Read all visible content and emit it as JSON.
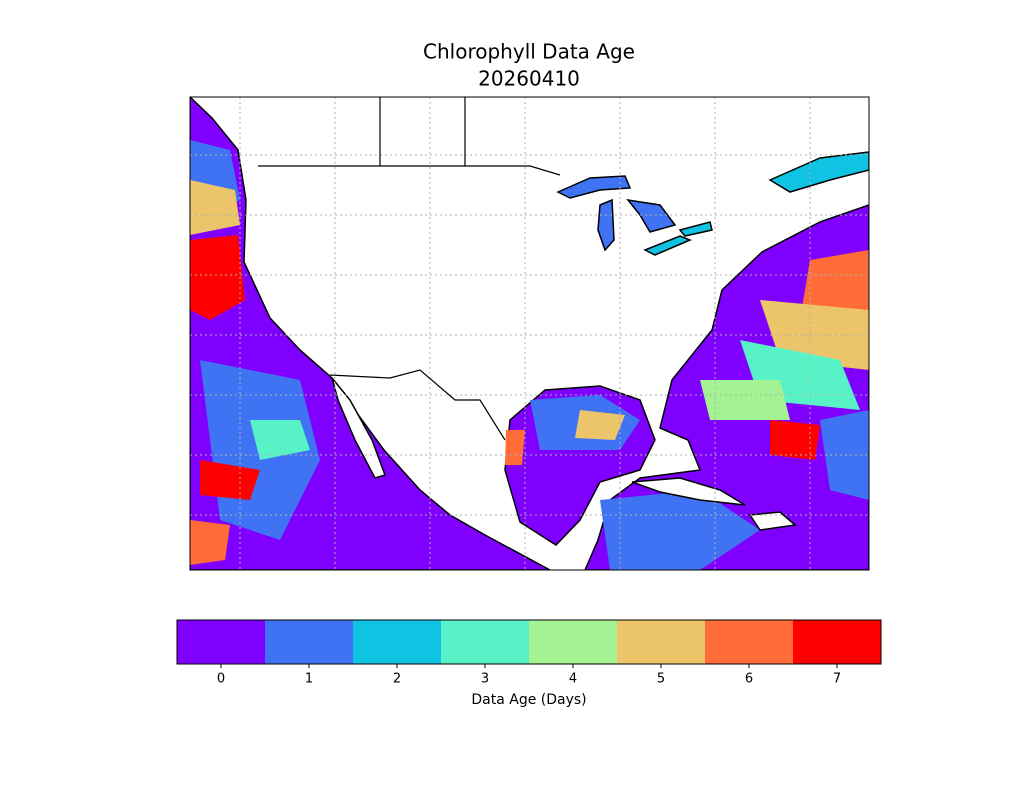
{
  "title": "Chlorophyll Data Age",
  "subtitle": "20260410",
  "colorbar": {
    "label": "Data Age (Days)",
    "ticks": [
      0,
      1,
      2,
      3,
      4,
      5,
      6,
      7
    ],
    "colors": [
      "#7f00ff",
      "#3f73f4",
      "#11c3e3",
      "#57f3c6",
      "#a4f392",
      "#ecc56b",
      "#ff6c37",
      "#ff0000"
    ]
  }
}
